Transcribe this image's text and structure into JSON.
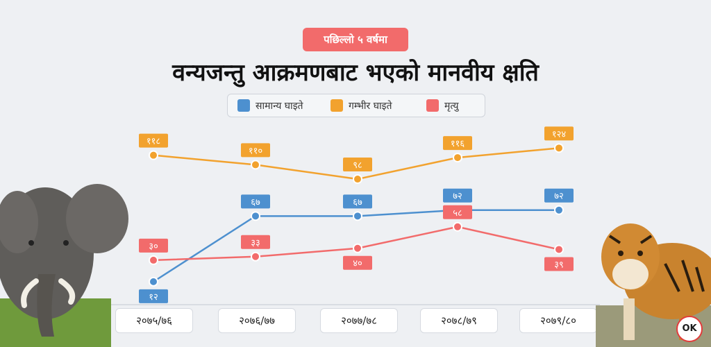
{
  "header": {
    "pill": "पछिल्लो ५ वर्षमा",
    "title": "वन्यजन्तु आक्रमणबाट भएको मानवीय क्षति"
  },
  "logo_text": "OK",
  "chart_data": {
    "type": "line",
    "categories": [
      "२०७५/७६",
      "२०७६/७७",
      "२०७७/७८",
      "२०७८/७९",
      "२०७९/८०"
    ],
    "series": [
      {
        "name": "सामान्य घाइते",
        "color": "#4d90cf",
        "values": [
          12,
          67,
          67,
          72,
          72
        ],
        "labels": [
          "१२",
          "६७",
          "६७",
          "७२",
          "७२"
        ]
      },
      {
        "name": "गम्भीर घाइते",
        "color": "#f2a22e",
        "values": [
          118,
          110,
          98,
          116,
          124
        ],
        "labels": [
          "११८",
          "११०",
          "९८",
          "११६",
          "१२४"
        ]
      },
      {
        "name": "मृत्यु",
        "color": "#f26b6b",
        "values": [
          30,
          33,
          40,
          58,
          39
        ],
        "labels": [
          "३०",
          "३३",
          "४०",
          "५८",
          "३९"
        ]
      }
    ],
    "legend_position": "top",
    "grid": false
  }
}
